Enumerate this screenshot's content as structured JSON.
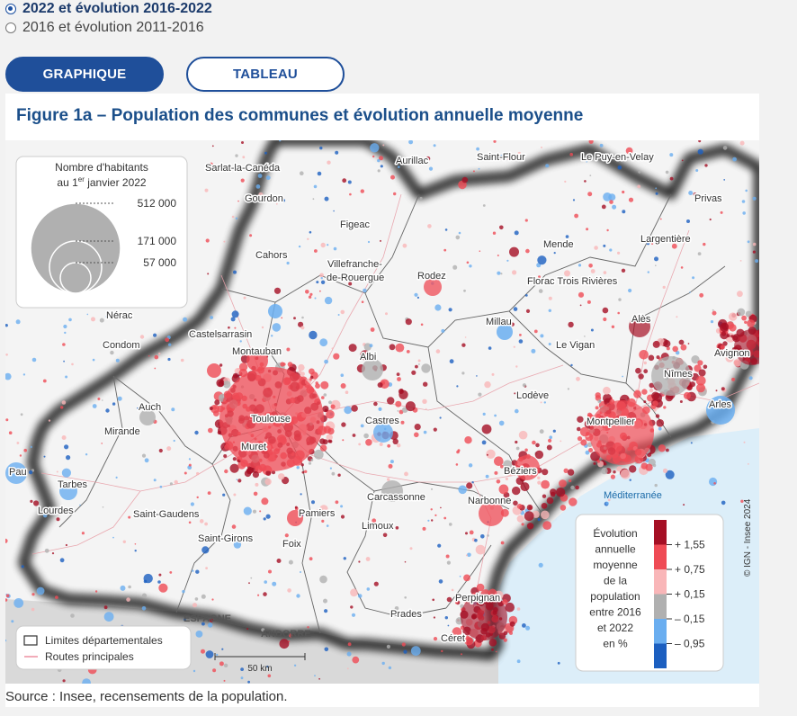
{
  "options": [
    {
      "label": "2022 et évolution 2016-2022",
      "selected": true
    },
    {
      "label": "2016 et évolution 2011-2016",
      "selected": false
    }
  ],
  "tabs": {
    "graph": "GRAPHIQUE",
    "table": "TABLEAU"
  },
  "figure": {
    "title": "Figure 1a – Population des communes et évolution annuelle moyenne",
    "source": "Source : Insee, recensements de la population.",
    "credit": "© IGN - Insee 2024"
  },
  "size_legend": {
    "title_line1": "Nombre d'habitants",
    "title_line2_pre": "au 1",
    "title_line2_sup": "er",
    "title_line2_post": " janvier 2022",
    "values": [
      "512 000",
      "171 000",
      "57 000"
    ]
  },
  "color_legend": {
    "title_lines": [
      "Évolution",
      "annuelle",
      "moyenne",
      "de la",
      "population",
      "entre 2016",
      "et 2022",
      "en %"
    ],
    "breaks": [
      "+ 1,55",
      "+ 0,75",
      "+ 0,15",
      "– 0,15",
      "– 0,95"
    ],
    "colors": [
      "#a50f24",
      "#ef4b55",
      "#f9b6b8",
      "#b0b0b0",
      "#6aaef0",
      "#1c5fc0"
    ]
  },
  "line_legend": {
    "departements": "Limites départementales",
    "routes": "Routes principales"
  },
  "scale": {
    "label": "50 km"
  },
  "regions": {
    "sea": "Méditerranée",
    "spain": "ESPAGNE",
    "andorra": "ANDORRE"
  },
  "cities": [
    {
      "name": "Sarlat-la-Canéda"
    },
    {
      "name": "Aurillac"
    },
    {
      "name": "Saint-Flour"
    },
    {
      "name": "Le Puy-en-Velay"
    },
    {
      "name": "Gourdon"
    },
    {
      "name": "Figeac"
    },
    {
      "name": "Privas"
    },
    {
      "name": "Cahors"
    },
    {
      "name": "Villefranche-"
    },
    {
      "name": "de-Rouergue"
    },
    {
      "name": "Mende"
    },
    {
      "name": "Largentière"
    },
    {
      "name": "Rodez"
    },
    {
      "name": "Florac Trois Rivières"
    },
    {
      "name": "Nérac"
    },
    {
      "name": "Millau"
    },
    {
      "name": "Alès"
    },
    {
      "name": "Condom"
    },
    {
      "name": "Castelsarrasin"
    },
    {
      "name": "Montauban"
    },
    {
      "name": "Le Vigan"
    },
    {
      "name": "Avignon"
    },
    {
      "name": "Albi"
    },
    {
      "name": "Nîmes"
    },
    {
      "name": "Lodève"
    },
    {
      "name": "Auch"
    },
    {
      "name": "Toulouse"
    },
    {
      "name": "Castres"
    },
    {
      "name": "Montpellier"
    },
    {
      "name": "Arles"
    },
    {
      "name": "Mirande"
    },
    {
      "name": "Muret"
    },
    {
      "name": "Béziers"
    },
    {
      "name": "Pau"
    },
    {
      "name": "Tarbes"
    },
    {
      "name": "Carcassonne"
    },
    {
      "name": "Narbonne"
    },
    {
      "name": "Lourdes"
    },
    {
      "name": "Saint-Gaudens"
    },
    {
      "name": "Pamiers"
    },
    {
      "name": "Limoux"
    },
    {
      "name": "Saint-Girons"
    },
    {
      "name": "Foix"
    },
    {
      "name": "Perpignan"
    },
    {
      "name": "Prades"
    },
    {
      "name": "Céret"
    }
  ]
}
